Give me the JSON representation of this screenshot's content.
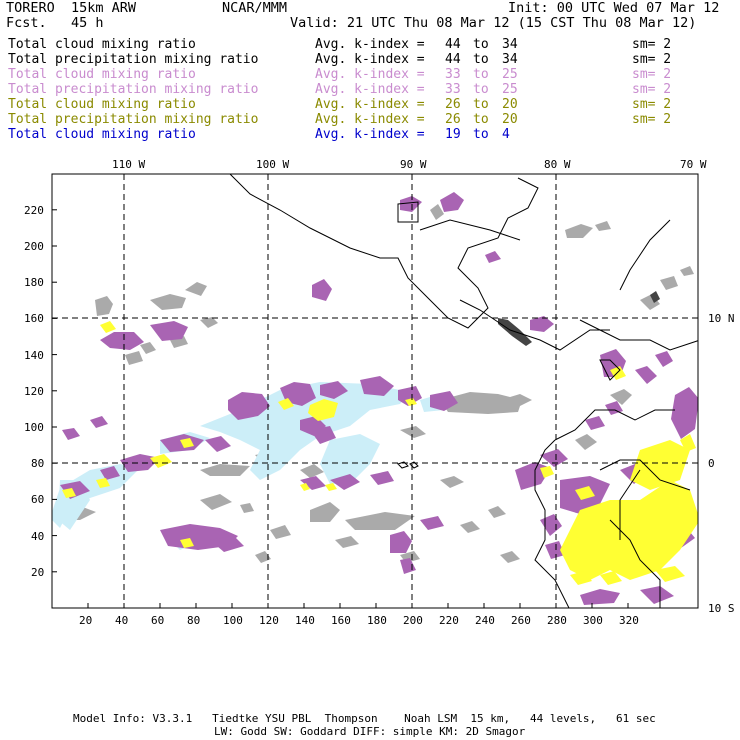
{
  "header": {
    "title_left": "TORERO  15km ARW",
    "org": "NCAR/MMM",
    "init": "Init: 00 UTC Wed 07 Mar 12",
    "fcst": "Fcst.   45 h",
    "valid": "Valid: 21 UTC Thu 08 Mar 12 (15 CST Thu 08 Mar 12)"
  },
  "legend": [
    {
      "field": "Total cloud mixing ratio",
      "avg": "Avg. k-index =",
      "hi": "44",
      "to": "to",
      "lo": "34",
      "sm": "sm= 2",
      "color": "#000000"
    },
    {
      "field": "Total precipitation mixing ratio",
      "avg": "Avg. k-index =",
      "hi": "44",
      "to": "to",
      "lo": "34",
      "sm": "sm= 2",
      "color": "#000000"
    },
    {
      "field": "Total cloud mixing ratio",
      "avg": "Avg. k-index =",
      "hi": "33",
      "to": "to",
      "lo": "25",
      "sm": "sm= 2",
      "color": "#c98ccf"
    },
    {
      "field": "Total precipitation mixing ratio",
      "avg": "Avg. k-index =",
      "hi": "33",
      "to": "to",
      "lo": "25",
      "sm": "sm= 2",
      "color": "#c98ccf"
    },
    {
      "field": "Total cloud mixing ratio",
      "avg": "Avg. k-index =",
      "hi": "26",
      "to": "to",
      "lo": "20",
      "sm": "sm= 2",
      "color": "#8a8a00"
    },
    {
      "field": "Total precipitation mixing ratio",
      "avg": "Avg. k-index =",
      "hi": "26",
      "to": "to",
      "lo": "20",
      "sm": "sm= 2",
      "color": "#8a8a00"
    },
    {
      "field": "Total cloud mixing ratio",
      "avg": "Avg. k-index =",
      "hi": "19",
      "to": "to",
      "lo": "4",
      "sm": "",
      "color": "#0000cc"
    }
  ],
  "map": {
    "lon_labels": [
      "110 W",
      "100 W",
      "90 W",
      "80 W",
      "70 W"
    ],
    "lat_labels": [
      "10 N",
      "0",
      "10 S"
    ],
    "x_ticks": [
      "20",
      "40",
      "60",
      "80",
      "100",
      "120",
      "140",
      "160",
      "180",
      "200",
      "220",
      "240",
      "260",
      "280",
      "300",
      "320"
    ],
    "y_ticks": [
      "20",
      "40",
      "60",
      "80",
      "100",
      "120",
      "140",
      "160",
      "180",
      "200",
      "220"
    ],
    "colors": {
      "gray": "#aaaaaa",
      "dark_gray": "#444444",
      "purple": "#a964b3",
      "yellow": "#ffff33",
      "cyan": "#cceef8",
      "grid": "#000000"
    }
  },
  "footer": {
    "line1": "Model Info: V3.3.1   Tiedtke YSU PBL  Thompson    Noah LSM  15 km,   44 levels,   61 sec",
    "line2": "LW: Godd SW: Goddard DIFF: simple KM: 2D Smagor"
  }
}
